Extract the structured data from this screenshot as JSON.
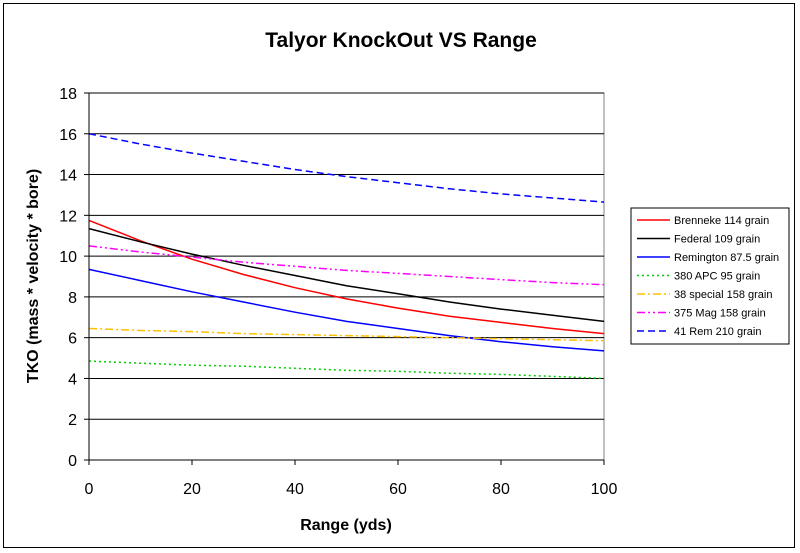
{
  "chart_data": {
    "type": "line",
    "title": "Talyor KnockOut VS Range",
    "xlabel": "Range (yds)",
    "ylabel": "TKO (mass * velocity * bore)",
    "xlim": [
      0,
      100
    ],
    "ylim": [
      0,
      18
    ],
    "x_ticks": [
      0,
      20,
      40,
      60,
      80,
      100
    ],
    "y_ticks": [
      0,
      2,
      4,
      6,
      8,
      10,
      12,
      14,
      16,
      18
    ],
    "grid": "horizontal",
    "legend_position": "right",
    "series": [
      {
        "name": "Brenneke 114 grain",
        "color": "#ff0000",
        "dash": "solid",
        "points": [
          [
            0,
            11.75
          ],
          [
            10,
            10.75
          ],
          [
            20,
            9.85
          ],
          [
            30,
            9.1
          ],
          [
            40,
            8.45
          ],
          [
            50,
            7.9
          ],
          [
            60,
            7.45
          ],
          [
            70,
            7.05
          ],
          [
            80,
            6.75
          ],
          [
            90,
            6.45
          ],
          [
            100,
            6.2
          ]
        ]
      },
      {
        "name": "Federal 109 grain",
        "color": "#000000",
        "dash": "solid",
        "points": [
          [
            0,
            11.35
          ],
          [
            10,
            10.7
          ],
          [
            20,
            10.1
          ],
          [
            30,
            9.55
          ],
          [
            40,
            9.05
          ],
          [
            50,
            8.55
          ],
          [
            60,
            8.15
          ],
          [
            70,
            7.75
          ],
          [
            80,
            7.4
          ],
          [
            90,
            7.1
          ],
          [
            100,
            6.8
          ]
        ]
      },
      {
        "name": "Remington 87.5 grain",
        "color": "#0000ff",
        "dash": "solid",
        "points": [
          [
            0,
            9.35
          ],
          [
            10,
            8.8
          ],
          [
            20,
            8.25
          ],
          [
            30,
            7.75
          ],
          [
            40,
            7.25
          ],
          [
            50,
            6.8
          ],
          [
            60,
            6.45
          ],
          [
            70,
            6.1
          ],
          [
            80,
            5.8
          ],
          [
            90,
            5.55
          ],
          [
            100,
            5.35
          ]
        ]
      },
      {
        "name": "380 APC 95 grain",
        "color": "#00cc00",
        "dash": "dot",
        "points": [
          [
            0,
            4.85
          ],
          [
            10,
            4.75
          ],
          [
            20,
            4.65
          ],
          [
            30,
            4.6
          ],
          [
            40,
            4.5
          ],
          [
            50,
            4.4
          ],
          [
            60,
            4.35
          ],
          [
            70,
            4.25
          ],
          [
            80,
            4.2
          ],
          [
            90,
            4.1
          ],
          [
            100,
            4.0
          ]
        ]
      },
      {
        "name": "38 special 158 grain",
        "color": "#ffc000",
        "dash": "dashdot",
        "points": [
          [
            0,
            6.45
          ],
          [
            10,
            6.35
          ],
          [
            20,
            6.3
          ],
          [
            30,
            6.2
          ],
          [
            40,
            6.15
          ],
          [
            50,
            6.1
          ],
          [
            60,
            6.05
          ],
          [
            70,
            6.0
          ],
          [
            80,
            5.95
          ],
          [
            90,
            5.9
          ],
          [
            100,
            5.85
          ]
        ]
      },
      {
        "name": "375 Mag 158 grain",
        "color": "#ff00ff",
        "dash": "dashdotdot",
        "points": [
          [
            0,
            10.5
          ],
          [
            10,
            10.2
          ],
          [
            20,
            9.95
          ],
          [
            30,
            9.7
          ],
          [
            40,
            9.5
          ],
          [
            50,
            9.3
          ],
          [
            60,
            9.15
          ],
          [
            70,
            9.0
          ],
          [
            80,
            8.85
          ],
          [
            90,
            8.7
          ],
          [
            100,
            8.6
          ]
        ]
      },
      {
        "name": "41 Rem 210 grain",
        "color": "#0000ff",
        "dash": "dash",
        "points": [
          [
            0,
            16.0
          ],
          [
            10,
            15.5
          ],
          [
            20,
            15.05
          ],
          [
            30,
            14.65
          ],
          [
            40,
            14.25
          ],
          [
            50,
            13.9
          ],
          [
            60,
            13.6
          ],
          [
            70,
            13.3
          ],
          [
            80,
            13.05
          ],
          [
            90,
            12.85
          ],
          [
            100,
            12.65
          ]
        ]
      }
    ]
  }
}
